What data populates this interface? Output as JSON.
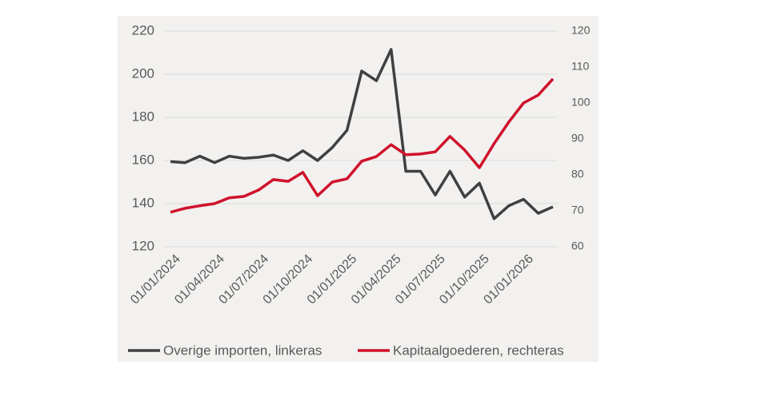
{
  "chart_data": {
    "type": "line",
    "x": [
      "01/01/2024",
      null,
      null,
      "01/04/2024",
      null,
      null,
      "01/07/2024",
      null,
      null,
      "01/10/2024",
      null,
      null,
      "01/01/2025",
      null,
      null,
      "01/04/2025",
      null,
      null,
      "01/07/2025",
      null,
      null,
      "01/10/2025",
      null,
      null,
      "01/01/2026",
      null,
      null
    ],
    "series": [
      {
        "name": "Overige importen, linkeras",
        "color": "#404040",
        "axis": "y",
        "values": [
          159.5,
          159,
          162,
          159,
          162,
          161,
          161.5,
          162.5,
          160,
          164.5,
          160,
          166,
          174,
          201.5,
          197,
          211.5,
          155,
          155,
          144,
          155,
          143,
          149.5,
          133,
          139,
          142,
          135.5,
          138.5
        ]
      },
      {
        "name": "Kapitaalgoederen, rechteras",
        "color": "#d0112b",
        "axis": "y2",
        "values": [
          69.6,
          70.7,
          71.4,
          72,
          73.6,
          74,
          75.8,
          78.7,
          78.2,
          80.7,
          74.2,
          78,
          78.9,
          83.8,
          85.1,
          88.4,
          85.6,
          85.8,
          86.4,
          90.7,
          86.9,
          82,
          88.7,
          94.7,
          100,
          102.2,
          106.7
        ]
      }
    ],
    "ylim": [
      120,
      220
    ],
    "yticks": [
      120,
      140,
      160,
      180,
      200,
      220
    ],
    "y2lim": [
      60,
      120
    ],
    "y2ticks": [
      60,
      70,
      80,
      90,
      100,
      110,
      120
    ],
    "grid": true,
    "legend": "bottom"
  }
}
